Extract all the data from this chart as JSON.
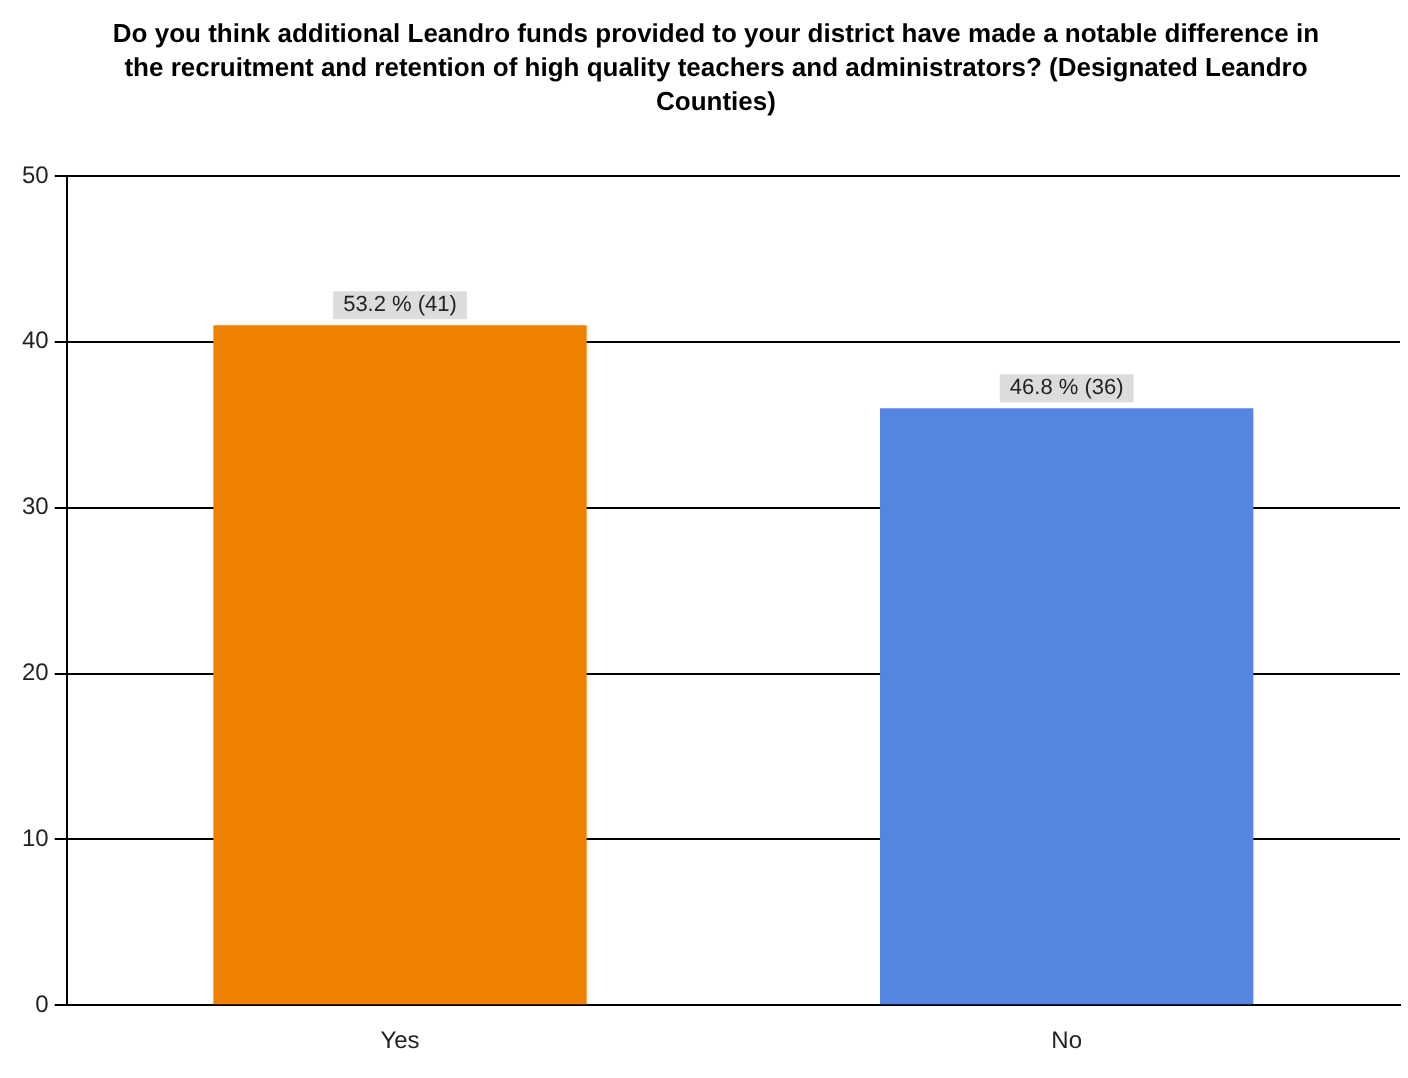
{
  "chart_data": {
    "type": "bar",
    "title": "Do you think additional Leandro funds provided to your district have made a notable difference in the recruitment and retention of high quality teachers and administrators? (Designated Leandro Counties)",
    "categories": [
      "Yes",
      "No"
    ],
    "values": [
      41,
      36
    ],
    "colors": [
      "#f08000",
      "#5585e0"
    ],
    "value_labels": [
      "53.2 % (41)",
      "46.8 % (36)"
    ],
    "ylim": [
      0,
      50
    ],
    "yticks": [
      0,
      10,
      20,
      30,
      40,
      50
    ],
    "grid": "y",
    "legend": false
  }
}
